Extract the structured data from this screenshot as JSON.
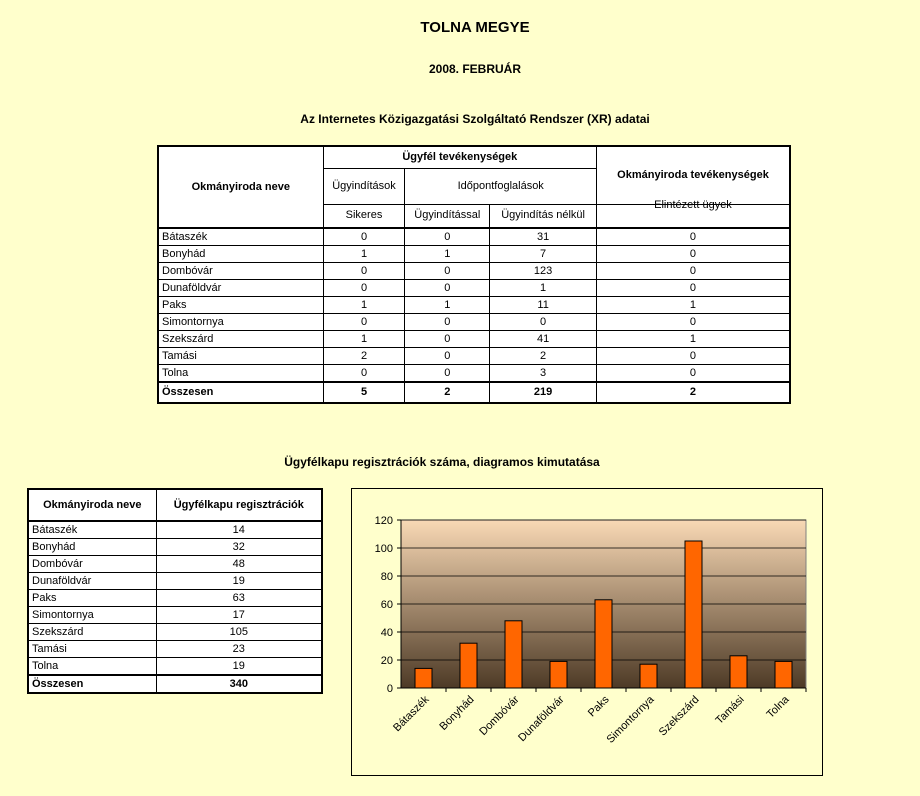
{
  "header": {
    "title": "TOLNA MEGYE",
    "period": "2008. FEBRUÁR"
  },
  "xr_section": {
    "title": "Az Internetes Közigazgatási Szolgáltató Rendszer (XR) adatai",
    "col_name": "Okmányiroda neve",
    "group_client": "Ügyfél tevékenységek",
    "group_office": "Okmányiroda tevékenységek",
    "sub_initiations": "Ügyindítások",
    "sub_appointments": "Időpontfoglalások",
    "col_successful": "Sikeres",
    "col_with_init": "Ügyindítással",
    "col_without_init": "Ügyindítás nélkül",
    "col_handled": "Elintézett ügyek",
    "rows": [
      {
        "name": "Bátaszék",
        "successful": "0",
        "with_init": "0",
        "without_init": "31",
        "handled": "0"
      },
      {
        "name": "Bonyhád",
        "successful": "1",
        "with_init": "1",
        "without_init": "7",
        "handled": "0"
      },
      {
        "name": "Dombóvár",
        "successful": "0",
        "with_init": "0",
        "without_init": "123",
        "handled": "0"
      },
      {
        "name": "Dunaföldvár",
        "successful": "0",
        "with_init": "0",
        "without_init": "1",
        "handled": "0"
      },
      {
        "name": "Paks",
        "successful": "1",
        "with_init": "1",
        "without_init": "11",
        "handled": "1"
      },
      {
        "name": "Simontornya",
        "successful": "0",
        "with_init": "0",
        "without_init": "0",
        "handled": "0"
      },
      {
        "name": "Szekszárd",
        "successful": "1",
        "with_init": "0",
        "without_init": "41",
        "handled": "1"
      },
      {
        "name": "Tamási",
        "successful": "2",
        "with_init": "0",
        "without_init": "2",
        "handled": "0"
      },
      {
        "name": "Tolna",
        "successful": "0",
        "with_init": "0",
        "without_init": "3",
        "handled": "0"
      }
    ],
    "total": {
      "name": "Összesen",
      "successful": "5",
      "with_init": "2",
      "without_init": "219",
      "handled": "2"
    }
  },
  "reg_section": {
    "title": "Ügyfélkapu regisztrációk száma, diagramos kimutatása",
    "col_name": "Okmányiroda neve",
    "col_count": "Ügyfélkapu regisztrációk",
    "rows": [
      {
        "name": "Bátaszék",
        "count": "14"
      },
      {
        "name": "Bonyhád",
        "count": "32"
      },
      {
        "name": "Dombóvár",
        "count": "48"
      },
      {
        "name": "Dunaföldvár",
        "count": "19"
      },
      {
        "name": "Paks",
        "count": "63"
      },
      {
        "name": "Simontornya",
        "count": "17"
      },
      {
        "name": "Szekszárd",
        "count": "105"
      },
      {
        "name": "Tamási",
        "count": "23"
      },
      {
        "name": "Tolna",
        "count": "19"
      }
    ],
    "total": {
      "name": "Összesen",
      "count": "340"
    }
  },
  "chart_data": {
    "type": "bar",
    "categories": [
      "Bátaszék",
      "Bonyhád",
      "Dombóvár",
      "Dunaföldvár",
      "Paks",
      "Simontornya",
      "Szekszárd",
      "Tamási",
      "Tolna"
    ],
    "values": [
      14,
      32,
      48,
      19,
      63,
      17,
      105,
      23,
      19
    ],
    "title": "",
    "xlabel": "",
    "ylabel": "",
    "ylim": [
      0,
      120
    ],
    "yticks": [
      "0",
      "20",
      "40",
      "60",
      "80",
      "100",
      "120"
    ],
    "grid": true,
    "legend": "none",
    "colors": {
      "bar_fill": "#ff6600",
      "bar_stroke": "#000000",
      "plot_top": "#f9d9b5",
      "plot_bottom": "#4d3a26"
    }
  }
}
